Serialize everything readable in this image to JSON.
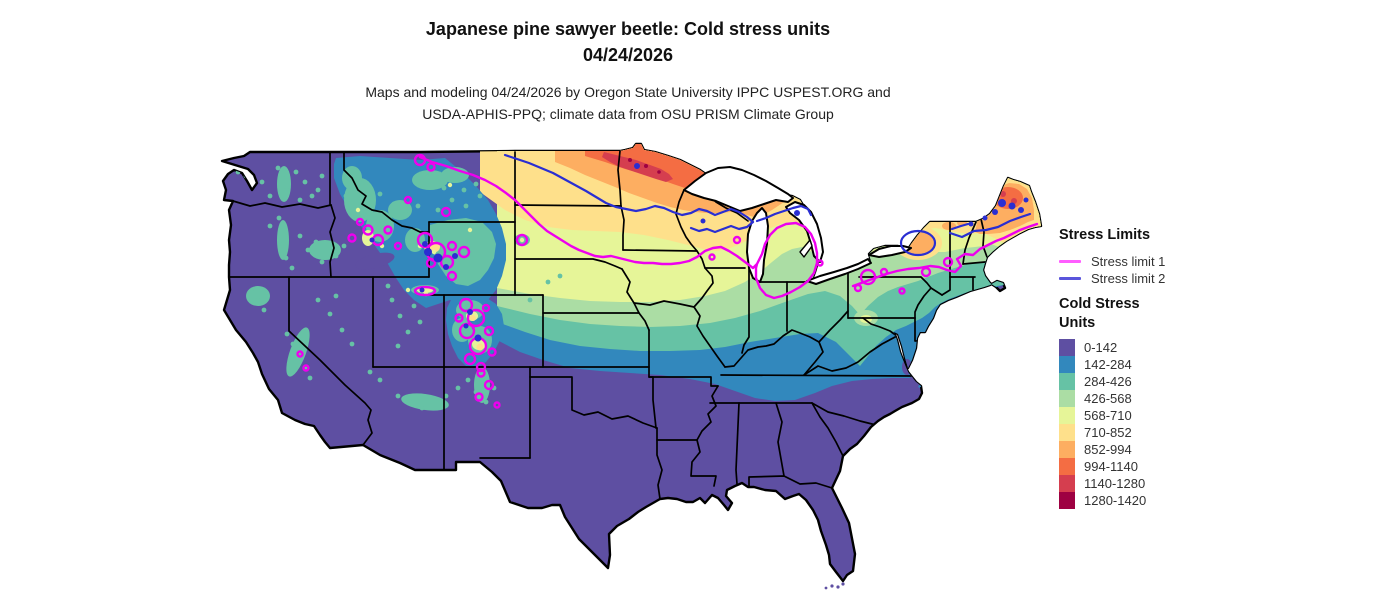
{
  "header": {
    "title_line1": "Japanese pine sawyer beetle: Cold stress units",
    "title_line2": "04/24/2026",
    "subtitle_line1": "Maps and modeling 04/24/2026 by Oregon State University IPPC USPEST.ORG and",
    "subtitle_line2": "USDA-APHIS-PPQ; climate data from OSU PRISM Climate Group"
  },
  "map": {
    "region": "Continental United States",
    "kind": "cold stress units choropleth with stress limit contours"
  },
  "legend": {
    "stress_limits": {
      "heading": "Stress Limits",
      "items": [
        {
          "label": "Stress limit 1",
          "color": "#ff5dff"
        },
        {
          "label": "Stress limit 2",
          "color": "#5a55dc"
        }
      ]
    },
    "cold_stress": {
      "heading_line1": "Cold Stress",
      "heading_line2": "Units",
      "classes": [
        {
          "label": "0-142",
          "color": "#5e4fa2"
        },
        {
          "label": "142-284",
          "color": "#3288bd"
        },
        {
          "label": "284-426",
          "color": "#66c2a5"
        },
        {
          "label": "426-568",
          "color": "#abdda4"
        },
        {
          "label": "568-710",
          "color": "#e6f598"
        },
        {
          "label": "710-852",
          "color": "#fee08b"
        },
        {
          "label": "852-994",
          "color": "#fdae61"
        },
        {
          "label": "994-1140",
          "color": "#f46d43"
        },
        {
          "label": "1140-1280",
          "color": "#d53e4f"
        },
        {
          "label": "1280-1420",
          "color": "#9e0142"
        }
      ]
    }
  }
}
